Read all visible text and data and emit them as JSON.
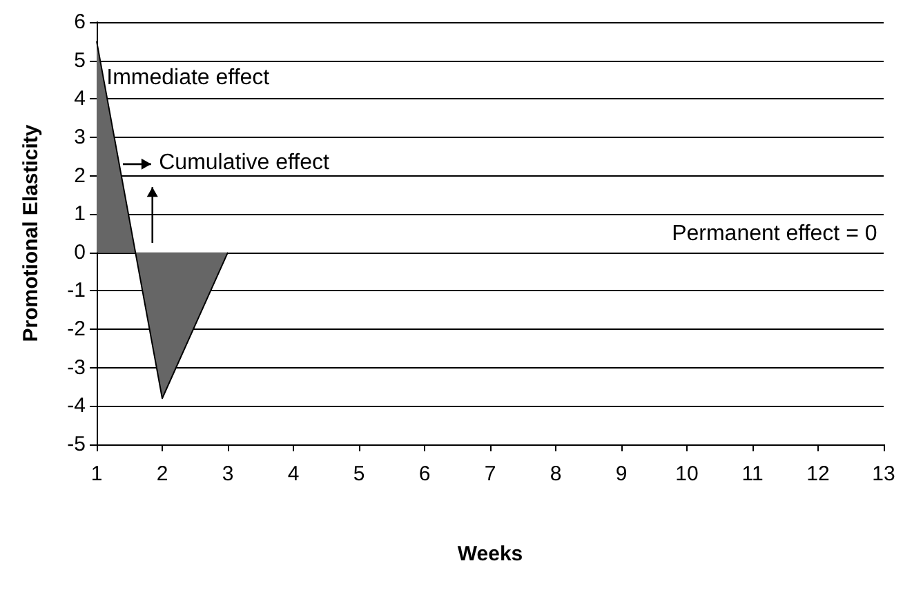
{
  "chart_data": {
    "type": "area",
    "xlabel": "Weeks",
    "ylabel": "Promotional Elasticity",
    "x": [
      1,
      2,
      3
    ],
    "series": [
      {
        "color": "#666666",
        "values": [
          5.5,
          -3.8,
          0
        ]
      }
    ],
    "xlim": [
      1,
      13
    ],
    "xticks": [
      1,
      2,
      3,
      4,
      5,
      6,
      7,
      8,
      9,
      10,
      11,
      12,
      13
    ],
    "ylim": [
      -5,
      6
    ],
    "yticks": [
      -5,
      -4,
      -3,
      -2,
      -1,
      0,
      1,
      2,
      3,
      4,
      5,
      6
    ],
    "grid": "y",
    "marker": "none",
    "line_style": "solid",
    "annotations": [
      "Immediate effect",
      "Cumulative effect",
      "Permanent effect = 0"
    ]
  }
}
